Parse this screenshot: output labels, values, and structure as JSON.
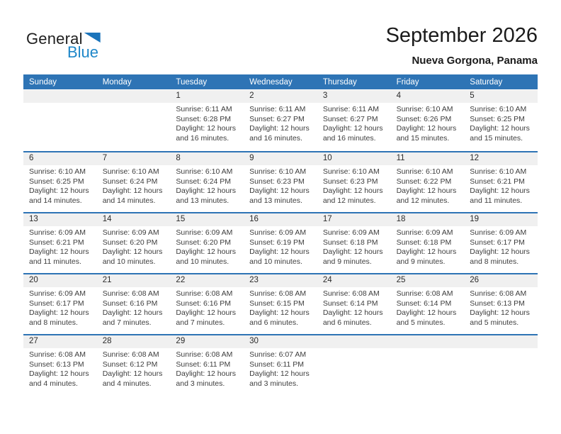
{
  "logo": {
    "text_black": "General",
    "text_blue": "Blue"
  },
  "title": {
    "month_year": "September 2026",
    "location": "Nueva Gorgona, Panama"
  },
  "colors": {
    "header_blue": "#2e74b5",
    "separator_blue": "#2e74b5",
    "logo_triangle_blue": "#1b74bb",
    "logo_text_blue": "#1e87c9",
    "day_number_band_gray": "#f0f0f0"
  },
  "weekday_headers": [
    "Sunday",
    "Monday",
    "Tuesday",
    "Wednesday",
    "Thursday",
    "Friday",
    "Saturday"
  ],
  "weeks": [
    {
      "days": [
        {
          "num": "",
          "info": ""
        },
        {
          "num": "",
          "info": ""
        },
        {
          "num": "1",
          "info": "Sunrise: 6:11 AM\nSunset: 6:28 PM\nDaylight: 12 hours\nand 16 minutes."
        },
        {
          "num": "2",
          "info": "Sunrise: 6:11 AM\nSunset: 6:27 PM\nDaylight: 12 hours\nand 16 minutes."
        },
        {
          "num": "3",
          "info": "Sunrise: 6:11 AM\nSunset: 6:27 PM\nDaylight: 12 hours\nand 16 minutes."
        },
        {
          "num": "4",
          "info": "Sunrise: 6:10 AM\nSunset: 6:26 PM\nDaylight: 12 hours\nand 15 minutes."
        },
        {
          "num": "5",
          "info": "Sunrise: 6:10 AM\nSunset: 6:25 PM\nDaylight: 12 hours\nand 15 minutes."
        }
      ]
    },
    {
      "days": [
        {
          "num": "6",
          "info": "Sunrise: 6:10 AM\nSunset: 6:25 PM\nDaylight: 12 hours\nand 14 minutes."
        },
        {
          "num": "7",
          "info": "Sunrise: 6:10 AM\nSunset: 6:24 PM\nDaylight: 12 hours\nand 14 minutes."
        },
        {
          "num": "8",
          "info": "Sunrise: 6:10 AM\nSunset: 6:24 PM\nDaylight: 12 hours\nand 13 minutes."
        },
        {
          "num": "9",
          "info": "Sunrise: 6:10 AM\nSunset: 6:23 PM\nDaylight: 12 hours\nand 13 minutes."
        },
        {
          "num": "10",
          "info": "Sunrise: 6:10 AM\nSunset: 6:23 PM\nDaylight: 12 hours\nand 12 minutes."
        },
        {
          "num": "11",
          "info": "Sunrise: 6:10 AM\nSunset: 6:22 PM\nDaylight: 12 hours\nand 12 minutes."
        },
        {
          "num": "12",
          "info": "Sunrise: 6:10 AM\nSunset: 6:21 PM\nDaylight: 12 hours\nand 11 minutes."
        }
      ]
    },
    {
      "days": [
        {
          "num": "13",
          "info": "Sunrise: 6:09 AM\nSunset: 6:21 PM\nDaylight: 12 hours\nand 11 minutes."
        },
        {
          "num": "14",
          "info": "Sunrise: 6:09 AM\nSunset: 6:20 PM\nDaylight: 12 hours\nand 10 minutes."
        },
        {
          "num": "15",
          "info": "Sunrise: 6:09 AM\nSunset: 6:20 PM\nDaylight: 12 hours\nand 10 minutes."
        },
        {
          "num": "16",
          "info": "Sunrise: 6:09 AM\nSunset: 6:19 PM\nDaylight: 12 hours\nand 10 minutes."
        },
        {
          "num": "17",
          "info": "Sunrise: 6:09 AM\nSunset: 6:18 PM\nDaylight: 12 hours\nand 9 minutes."
        },
        {
          "num": "18",
          "info": "Sunrise: 6:09 AM\nSunset: 6:18 PM\nDaylight: 12 hours\nand 9 minutes."
        },
        {
          "num": "19",
          "info": "Sunrise: 6:09 AM\nSunset: 6:17 PM\nDaylight: 12 hours\nand 8 minutes."
        }
      ]
    },
    {
      "days": [
        {
          "num": "20",
          "info": "Sunrise: 6:09 AM\nSunset: 6:17 PM\nDaylight: 12 hours\nand 8 minutes."
        },
        {
          "num": "21",
          "info": "Sunrise: 6:08 AM\nSunset: 6:16 PM\nDaylight: 12 hours\nand 7 minutes."
        },
        {
          "num": "22",
          "info": "Sunrise: 6:08 AM\nSunset: 6:16 PM\nDaylight: 12 hours\nand 7 minutes."
        },
        {
          "num": "23",
          "info": "Sunrise: 6:08 AM\nSunset: 6:15 PM\nDaylight: 12 hours\nand 6 minutes."
        },
        {
          "num": "24",
          "info": "Sunrise: 6:08 AM\nSunset: 6:14 PM\nDaylight: 12 hours\nand 6 minutes."
        },
        {
          "num": "25",
          "info": "Sunrise: 6:08 AM\nSunset: 6:14 PM\nDaylight: 12 hours\nand 5 minutes."
        },
        {
          "num": "26",
          "info": "Sunrise: 6:08 AM\nSunset: 6:13 PM\nDaylight: 12 hours\nand 5 minutes."
        }
      ]
    },
    {
      "days": [
        {
          "num": "27",
          "info": "Sunrise: 6:08 AM\nSunset: 6:13 PM\nDaylight: 12 hours\nand 4 minutes."
        },
        {
          "num": "28",
          "info": "Sunrise: 6:08 AM\nSunset: 6:12 PM\nDaylight: 12 hours\nand 4 minutes."
        },
        {
          "num": "29",
          "info": "Sunrise: 6:08 AM\nSunset: 6:11 PM\nDaylight: 12 hours\nand 3 minutes."
        },
        {
          "num": "30",
          "info": "Sunrise: 6:07 AM\nSunset: 6:11 PM\nDaylight: 12 hours\nand 3 minutes."
        },
        {
          "num": "",
          "info": ""
        },
        {
          "num": "",
          "info": ""
        },
        {
          "num": "",
          "info": ""
        }
      ]
    }
  ]
}
